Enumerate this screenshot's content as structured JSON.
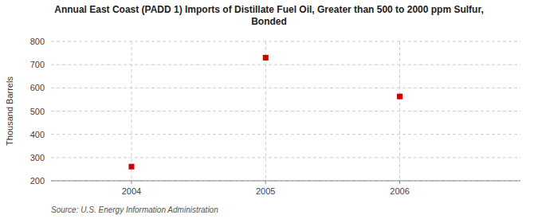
{
  "chart_data": {
    "type": "scatter",
    "title": "Annual East Coast (PADD 1) Imports of Distillate Fuel Oil, Greater than 500 to 2000 ppm Sulfur,\nBonded",
    "ylabel": "Thousand Barrels",
    "source": "Source: U.S. Energy Information Administration",
    "x": [
      2004,
      2005,
      2006
    ],
    "values": [
      261,
      730,
      563
    ],
    "xlim": [
      2003.4,
      2006.9
    ],
    "xticks": [
      2004,
      2005,
      2006
    ],
    "ylim": [
      200,
      800
    ],
    "yticks": [
      200,
      300,
      400,
      500,
      600,
      700,
      800
    ],
    "color": "#cc0000",
    "marker": "square",
    "grid": true
  }
}
